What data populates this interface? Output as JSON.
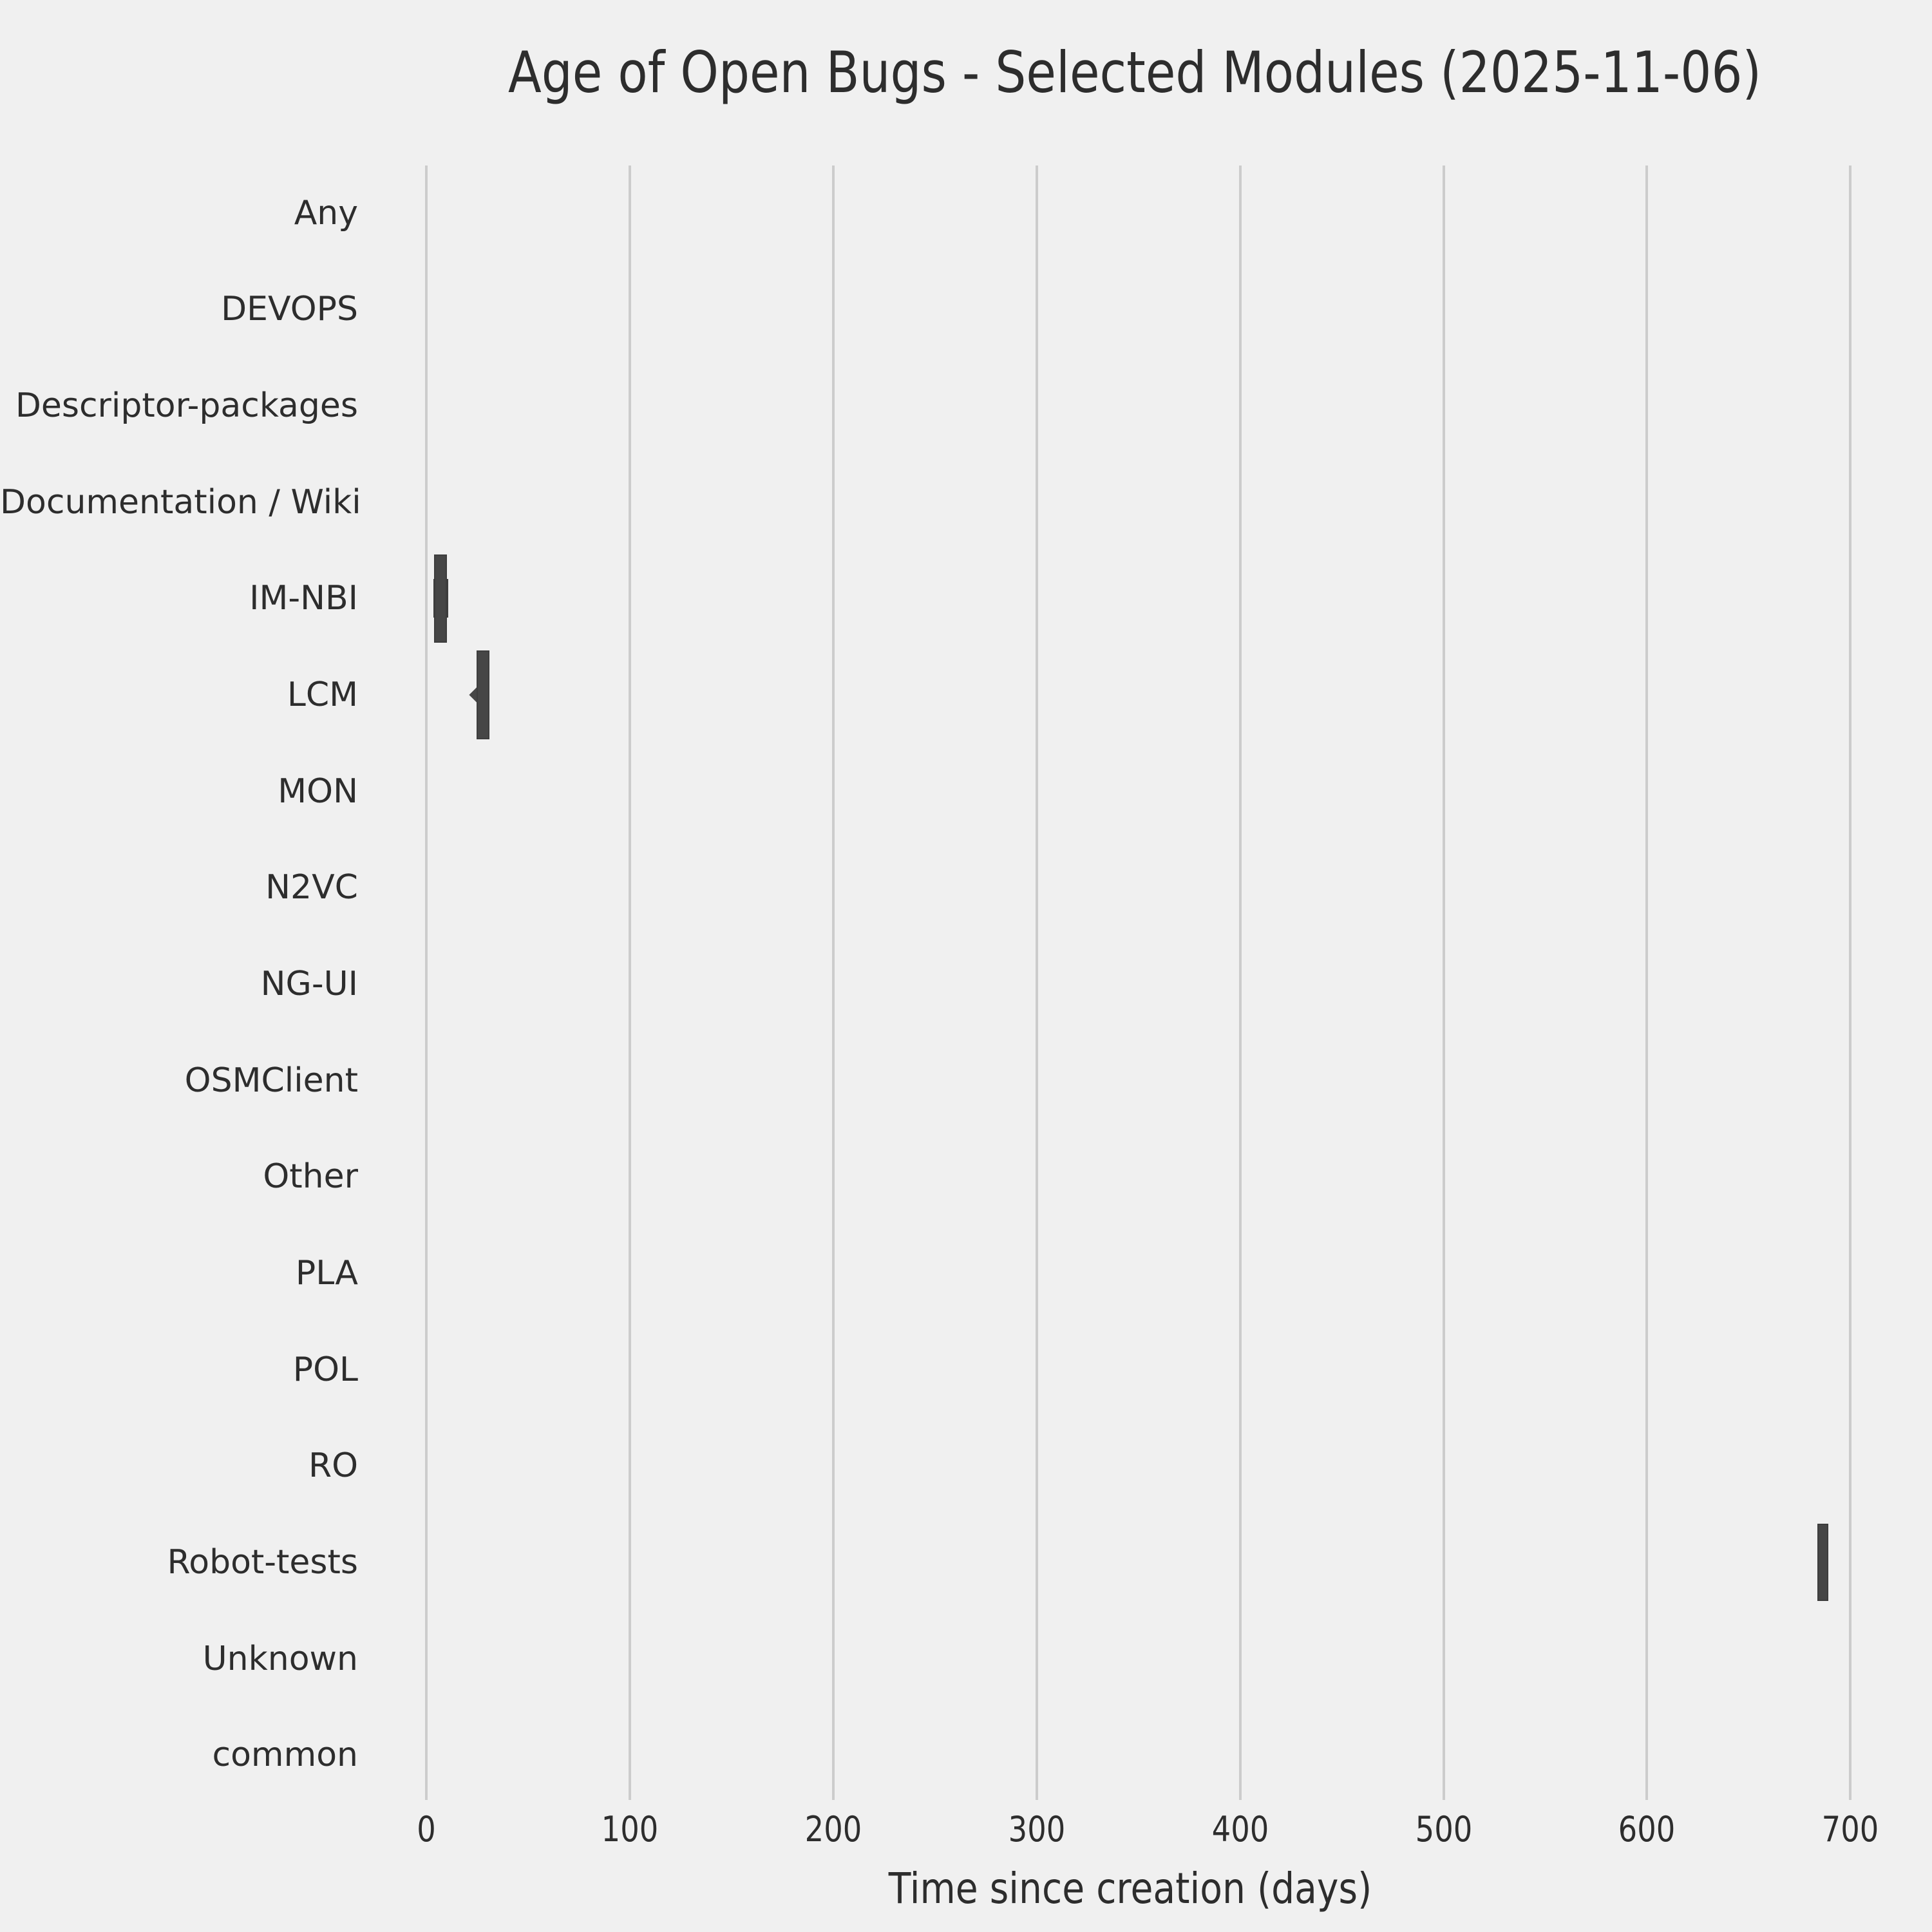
{
  "title": "Age of Open Bugs - Selected Modules (2025-11-06)",
  "chart_data": {
    "type": "boxplot",
    "orientation": "horizontal",
    "title": "Age of Open Bugs - Selected Modules (2025-11-06)",
    "xlabel": "Time since creation (days)",
    "ylabel": "",
    "categories": [
      "Any",
      "DEVOPS",
      "Descriptor-packages",
      "Documentation / Wiki",
      "IM-NBI",
      "LCM",
      "MON",
      "N2VC",
      "NG-UI",
      "OSMClient",
      "Other",
      "PLA",
      "POL",
      "RO",
      "Robot-tests",
      "Unknown",
      "common"
    ],
    "xticks": [
      0,
      100,
      200,
      300,
      400,
      500,
      600,
      700
    ],
    "xlim": [
      -31,
      723
    ],
    "grid": "vertical-only",
    "legend": "none",
    "series": [
      {
        "category": "IM-NBI",
        "boxes": [
          {
            "from": 3.4,
            "to": 10.7,
            "thickness": 0.4
          },
          {
            "from": 3.9,
            "to": 10.2,
            "thickness": 0.918
          }
        ],
        "outliers": []
      },
      {
        "category": "LCM",
        "boxes": [
          {
            "from": 24.7,
            "to": 30.9,
            "thickness": 0.92
          }
        ],
        "outliers": [
          26
        ]
      },
      {
        "category": "Robot-tests",
        "boxes": [
          {
            "from": 683.6,
            "to": 689.0,
            "thickness": 0.8
          }
        ],
        "outliers": []
      }
    ],
    "colors": {
      "background": "#f0f0f0",
      "box_fill": "#464646",
      "box_edge": "#3d3d3d",
      "grid": "#cccccc",
      "text": "#2d2d2d"
    }
  }
}
